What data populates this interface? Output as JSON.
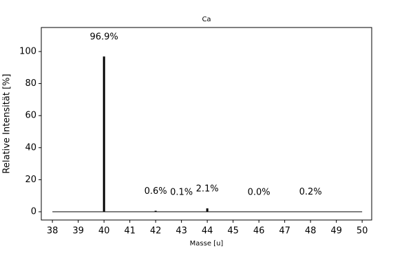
{
  "chart_data": {
    "type": "bar",
    "title": "Ca",
    "x_label": "Masse [u]",
    "y_label": "Relative Intensität [%]",
    "x": [
      40,
      42,
      43,
      44,
      46,
      48
    ],
    "values": [
      96.9,
      0.6,
      0.1,
      2.1,
      0.0,
      0.2
    ],
    "value_labels": [
      "96.9%",
      "0.6%",
      "0.1%",
      "2.1%",
      "0.0%",
      "0.2%"
    ],
    "color": "#000000",
    "xlim": [
      37.57,
      50.37
    ],
    "xticks": [
      38,
      39,
      40,
      41,
      42,
      43,
      44,
      45,
      46,
      47,
      48,
      49,
      50
    ],
    "ylim": [
      -5.15,
      115
    ],
    "yticks": [
      0,
      20,
      40,
      60,
      80,
      100
    ]
  }
}
